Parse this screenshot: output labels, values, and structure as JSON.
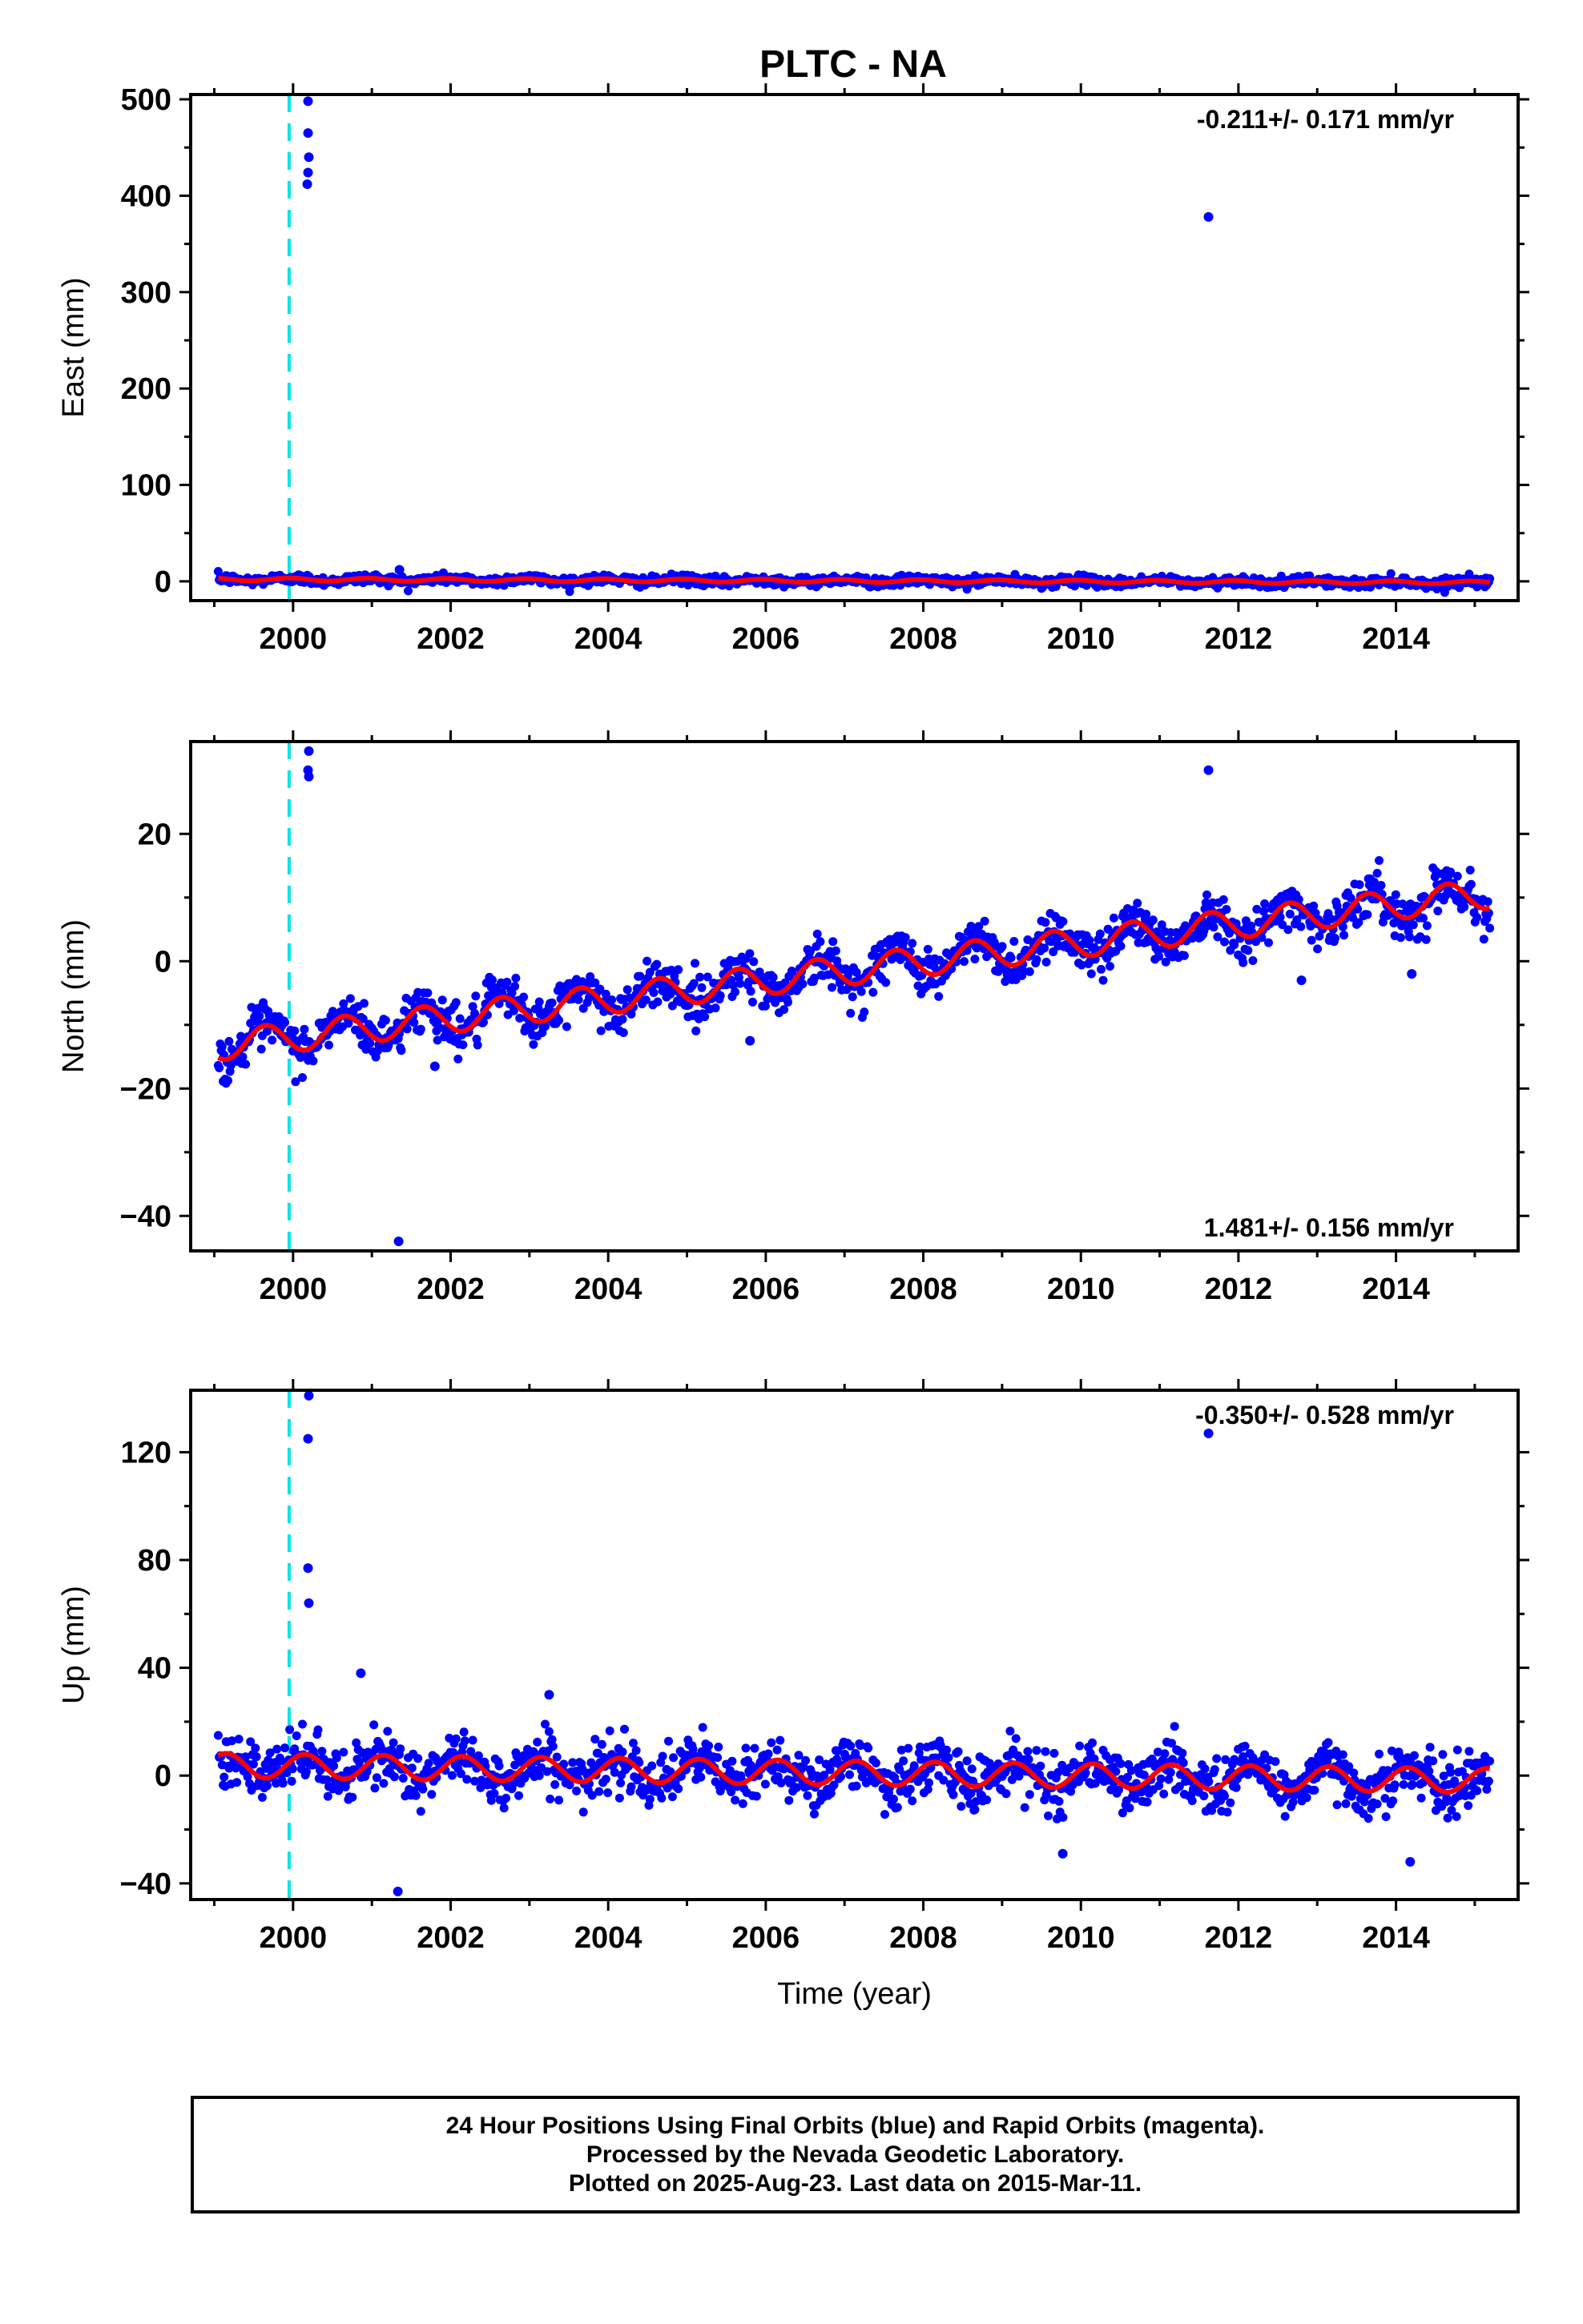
{
  "title": "PLTC - NA",
  "footer": {
    "line1": "24 Hour Positions Using Final Orbits (blue) and Rapid Orbits (magenta).",
    "line2": "Processed by the Nevada Geodetic Laboratory.",
    "line3": "Plotted on 2025-Aug-23. Last data on 2015-Mar-11."
  },
  "colors": {
    "points": "#0000ff",
    "fit": "#ff0000",
    "offset_line": "#00e5e5",
    "frame": "#000000"
  },
  "chart_data": [
    {
      "type": "scatter",
      "ylabel": "East (mm)",
      "xlabel": "",
      "rate_label": "-0.211+/- 0.171 mm/yr",
      "rate_position": "top-right",
      "xlim": [
        1998.7,
        2015.55
      ],
      "ylim": [
        -20,
        505
      ],
      "xticks": [
        2000,
        2002,
        2004,
        2006,
        2008,
        2010,
        2012,
        2014
      ],
      "yticks": [
        0,
        100,
        200,
        300,
        400,
        500
      ],
      "offset_year": 1999.95,
      "data_range": [
        1999.05,
        2015.19
      ],
      "trend": {
        "rate": -0.211,
        "intercept_2007": 0.5
      },
      "seasonal": {
        "amplitude": 1.5,
        "phase": 0.3
      },
      "scatter_sd": 2.5,
      "outliers": [
        {
          "x": 2000.19,
          "y": 498
        },
        {
          "x": 2000.19,
          "y": 465
        },
        {
          "x": 2000.2,
          "y": 440
        },
        {
          "x": 2000.19,
          "y": 424
        },
        {
          "x": 2000.18,
          "y": 412
        },
        {
          "x": 2011.62,
          "y": 378
        },
        {
          "x": 2001.35,
          "y": 12
        }
      ],
      "grid": false
    },
    {
      "type": "scatter",
      "ylabel": "North (mm)",
      "xlabel": "",
      "rate_label": "1.481+/- 0.156 mm/yr",
      "rate_position": "bottom-right",
      "xlim": [
        1998.7,
        2015.55
      ],
      "ylim": [
        -45.5,
        34.5
      ],
      "xticks": [
        2000,
        2002,
        2004,
        2006,
        2008,
        2010,
        2012,
        2014
      ],
      "yticks": [
        -40,
        -20,
        0,
        20
      ],
      "offset_year": 1999.95,
      "data_range": [
        1999.05,
        2015.19
      ],
      "trend": {
        "rate": 1.481,
        "intercept_2007": -1.5
      },
      "seasonal": {
        "amplitude": 2.3,
        "phase": 0.6
      },
      "scatter_sd": 1.8,
      "outliers": [
        {
          "x": 2000.2,
          "y": 33
        },
        {
          "x": 2000.19,
          "y": 30
        },
        {
          "x": 2000.2,
          "y": 29
        },
        {
          "x": 2011.62,
          "y": 30
        },
        {
          "x": 2001.34,
          "y": -44
        },
        {
          "x": 2005.8,
          "y": -12.5
        },
        {
          "x": 2001.8,
          "y": -16.5
        },
        {
          "x": 2014.2,
          "y": -2
        },
        {
          "x": 2012.8,
          "y": -3
        }
      ],
      "grid": false
    },
    {
      "type": "scatter",
      "ylabel": "Up (mm)",
      "xlabel": "Time (year)",
      "rate_label": "-0.350+/- 0.528 mm/yr",
      "rate_position": "top-right",
      "xlim": [
        1998.7,
        2015.55
      ],
      "ylim": [
        -46,
        143
      ],
      "xticks": [
        2000,
        2002,
        2004,
        2006,
        2008,
        2010,
        2012,
        2014
      ],
      "yticks": [
        -40,
        0,
        40,
        80,
        120
      ],
      "offset_year": 1999.95,
      "data_range": [
        1999.05,
        2015.19
      ],
      "trend": {
        "rate": -0.35,
        "intercept_2007": 1.0
      },
      "seasonal": {
        "amplitude": 4.5,
        "phase": 0.1
      },
      "scatter_sd": 5.0,
      "outliers": [
        {
          "x": 2000.2,
          "y": 141
        },
        {
          "x": 2000.19,
          "y": 125
        },
        {
          "x": 2000.19,
          "y": 77
        },
        {
          "x": 2000.2,
          "y": 64
        },
        {
          "x": 2011.62,
          "y": 127
        },
        {
          "x": 2000.86,
          "y": 38
        },
        {
          "x": 2001.33,
          "y": -43
        },
        {
          "x": 2009.77,
          "y": -29
        },
        {
          "x": 2014.18,
          "y": -32
        },
        {
          "x": 2003.25,
          "y": 30
        }
      ],
      "grid": false
    }
  ]
}
